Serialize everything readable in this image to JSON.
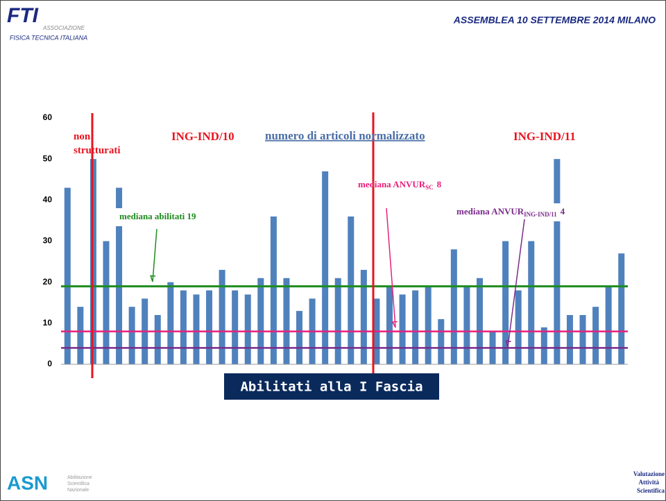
{
  "header": {
    "title": "ASSEMBLEA  10 SETTEMBRE  2014 MILANO"
  },
  "logos": {
    "fti": {
      "mark": "FTI",
      "line1": "ASSOCIAZIONE",
      "line2": "FISICA TECNICA ITALIANA"
    },
    "asn": {
      "mark": "ASN",
      "line1": "Abilitazione",
      "line2": "Scientifica",
      "line3": "Nazionale"
    },
    "vas": {
      "line1": "Valutazione",
      "line2": "Attività",
      "line3": "Scientifica"
    }
  },
  "chart_data": {
    "type": "bar",
    "color": "#4f81bd",
    "categories": [
      null,
      null,
      null,
      null,
      null,
      null,
      null,
      null,
      null,
      null,
      null,
      null,
      null,
      null,
      null,
      null,
      null,
      null,
      null,
      null,
      null,
      null,
      null,
      null,
      null,
      null,
      null,
      null,
      null,
      null,
      null,
      null,
      null,
      null,
      null,
      null,
      null,
      null,
      null,
      null,
      null,
      null,
      null,
      null
    ],
    "values": [
      43,
      14,
      50,
      30,
      43,
      14,
      16,
      12,
      20,
      18,
      17,
      18,
      23,
      18,
      17,
      21,
      36,
      21,
      13,
      16,
      47,
      21,
      36,
      23,
      16,
      19,
      17,
      18,
      19,
      11,
      28,
      19,
      21,
      8,
      30,
      18,
      30,
      9,
      50,
      12,
      12,
      14,
      19,
      27
    ],
    "ylim": [
      0,
      60
    ],
    "yticks": [
      0,
      10,
      20,
      30,
      40,
      50,
      60
    ],
    "reference_lines": [
      {
        "value": 19,
        "color": "#1e8c1e"
      },
      {
        "value": 8,
        "color": "#e8207a"
      },
      {
        "value": 4,
        "color": "#7a2a8a"
      }
    ],
    "annotations": {
      "group1": "non strutturati",
      "group2": "ING-IND/10",
      "subtitle": "numero di articoli normalizzato",
      "group3": "ING-IND/11",
      "median_abilitati": "mediana abilitati 19",
      "median_sc": {
        "text": "mediana ANVUR",
        "sub": "SC",
        "suffix": "8"
      },
      "median_ind": {
        "text": "mediana ANVUR",
        "sub": "ING-IND/11",
        "suffix": "4"
      }
    },
    "button": "Abilitati alla I Fascia"
  }
}
